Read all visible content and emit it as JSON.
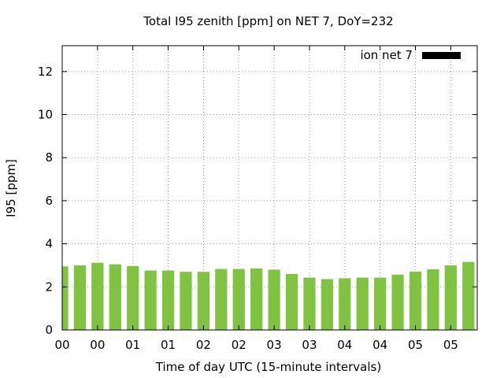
{
  "chart_data": {
    "type": "bar",
    "title": "Total I95 zenith [ppm] on NET 7, DoY=232",
    "xlabel": "Time of day UTC (15-minute intervals)",
    "ylabel": "I95 [ppm]",
    "ylim": [
      0,
      13.2
    ],
    "yticks": [
      0,
      2,
      4,
      6,
      8,
      10,
      12
    ],
    "xtick_labels": [
      "00",
      "00",
      "01",
      "01",
      "02",
      "02",
      "03",
      "03",
      "04",
      "04",
      "05",
      "05"
    ],
    "grid": true,
    "legend_position": "top-right",
    "legend_swatch_color": "#000000",
    "bar_color": "#80c342",
    "series": [
      {
        "name": "ion net 7",
        "values": [
          2.95,
          3.0,
          3.12,
          3.05,
          2.97,
          2.76,
          2.76,
          2.7,
          2.7,
          2.83,
          2.83,
          2.86,
          2.8,
          2.6,
          2.43,
          2.36,
          2.4,
          2.43,
          2.43,
          2.57,
          2.71,
          2.82,
          3.0,
          3.16
        ]
      }
    ]
  }
}
